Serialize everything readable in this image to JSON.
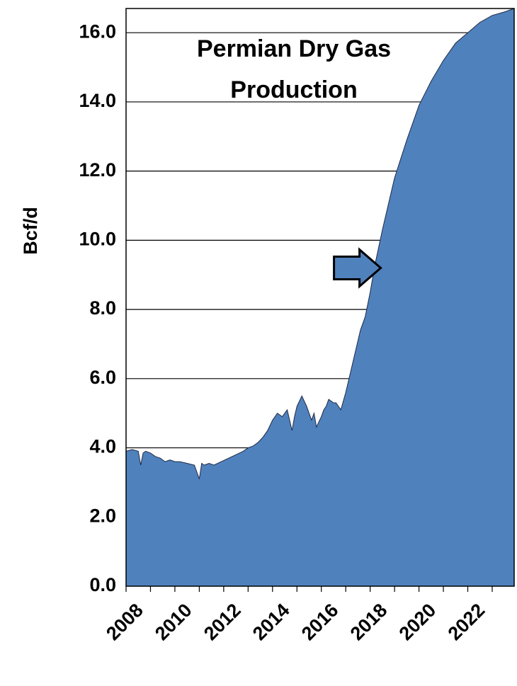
{
  "chart_data": {
    "type": "area",
    "title_lines": [
      "Permian Dry Gas",
      "Production"
    ],
    "xlabel": "",
    "ylabel": "Bcf/d",
    "xlim": [
      2008,
      2023.9
    ],
    "ylim": [
      0,
      16.7
    ],
    "x_ticks": [
      "2008",
      "2010",
      "2012",
      "2014",
      "2016",
      "2018",
      "2020",
      "2022"
    ],
    "y_ticks": [
      "0.0",
      "2.0",
      "4.0",
      "6.0",
      "8.0",
      "10.0",
      "12.0",
      "14.0",
      "16.0"
    ],
    "grid": "horizontal",
    "fill_color": "#4f81bd",
    "series": [
      {
        "x": [
          2008.0,
          2008.25,
          2008.5,
          2008.6,
          2008.7,
          2008.8,
          2009.0,
          2009.2,
          2009.4,
          2009.6,
          2009.8,
          2010.0,
          2010.2,
          2010.5,
          2010.8,
          2011.0,
          2011.1,
          2011.2,
          2011.4,
          2011.6,
          2011.9,
          2012.2,
          2012.5,
          2012.8,
          2013.0,
          2013.2,
          2013.4,
          2013.6,
          2013.8,
          2014.0,
          2014.2,
          2014.4,
          2014.6,
          2014.8,
          2014.9,
          2015.0,
          2015.2,
          2015.4,
          2015.6,
          2015.7,
          2015.8,
          2016.0,
          2016.1,
          2016.2,
          2016.3,
          2016.5,
          2016.6,
          2016.8,
          2017.0,
          2017.2,
          2017.4,
          2017.6,
          2017.8,
          2018.0,
          2018.2,
          2018.5,
          2018.8,
          2019.0,
          2019.5,
          2020.0,
          2020.5,
          2021.0,
          2021.5,
          2022.0,
          2022.5,
          2023.0,
          2023.5,
          2023.9
        ],
        "y": [
          3.9,
          3.95,
          3.9,
          3.5,
          3.85,
          3.9,
          3.85,
          3.75,
          3.7,
          3.6,
          3.65,
          3.6,
          3.6,
          3.55,
          3.5,
          3.1,
          3.55,
          3.5,
          3.55,
          3.5,
          3.6,
          3.7,
          3.8,
          3.9,
          4.0,
          4.05,
          4.15,
          4.3,
          4.5,
          4.8,
          5.0,
          4.9,
          5.1,
          4.5,
          4.9,
          5.2,
          5.5,
          5.2,
          4.8,
          5.0,
          4.6,
          4.9,
          5.1,
          5.2,
          5.4,
          5.3,
          5.3,
          5.1,
          5.6,
          6.2,
          6.8,
          7.4,
          7.8,
          8.5,
          9.3,
          10.3,
          11.2,
          11.8,
          12.9,
          13.9,
          14.6,
          15.2,
          15.7,
          16.0,
          16.3,
          16.5,
          16.6,
          16.7
        ]
      }
    ],
    "annotations": [
      {
        "type": "arrow",
        "direction": "right",
        "points_at": {
          "x": 2018.55,
          "y": 9.2
        }
      }
    ]
  }
}
